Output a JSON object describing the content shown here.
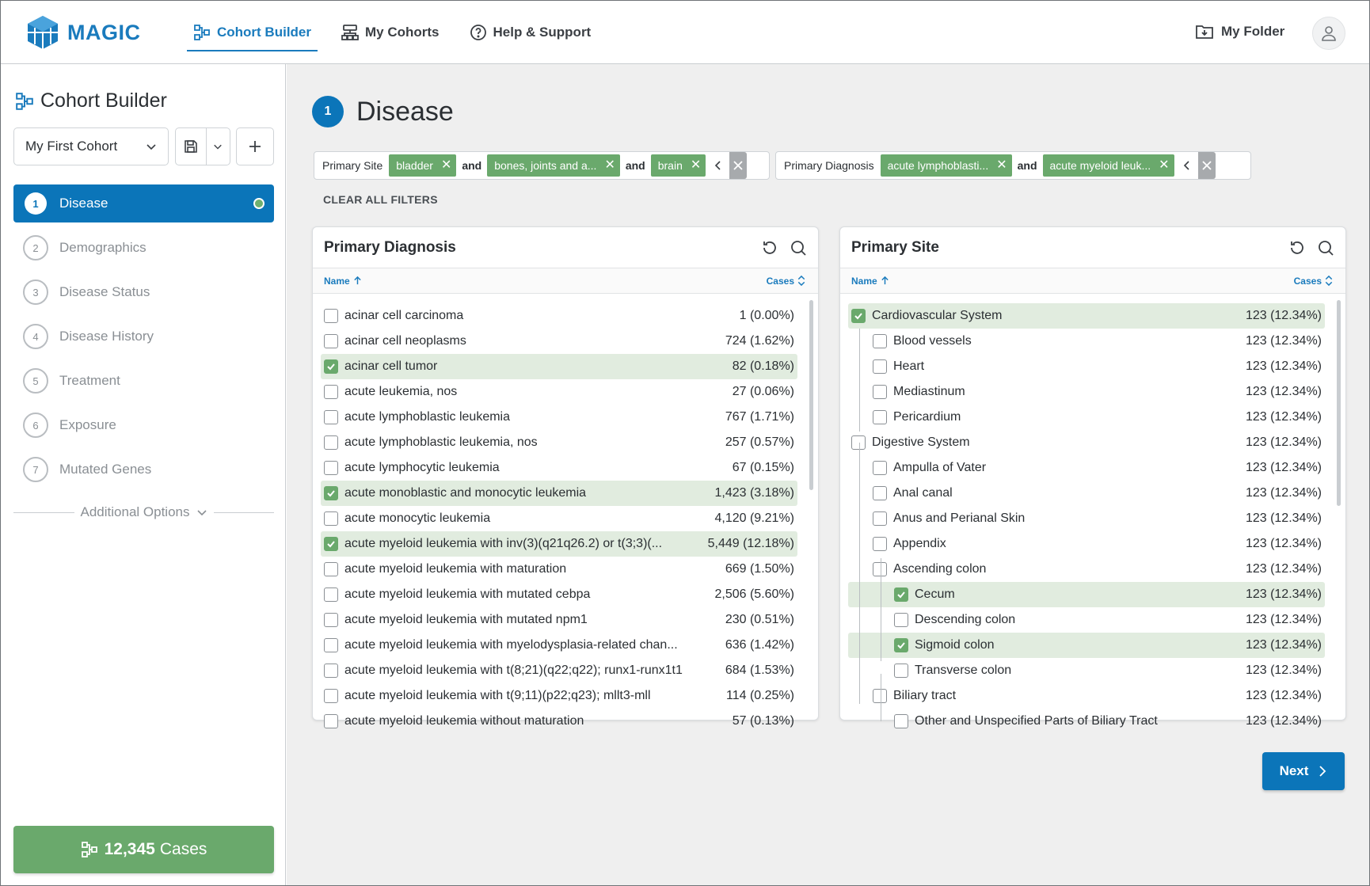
{
  "brand": {
    "name": "MAGIC",
    "color": "#1a7bbd"
  },
  "nav": {
    "items": [
      {
        "label": "Cohort Builder",
        "icon": "cohort-builder-icon",
        "active": true
      },
      {
        "label": "My Cohorts",
        "icon": "my-cohorts-icon",
        "active": false
      },
      {
        "label": "Help & Support",
        "icon": "help-icon",
        "active": false
      }
    ],
    "my_folder": "My Folder"
  },
  "sidebar": {
    "title": "Cohort Builder",
    "cohort_name": "My First Cohort",
    "steps": [
      {
        "num": "1",
        "label": "Disease",
        "active": true
      },
      {
        "num": "2",
        "label": "Demographics"
      },
      {
        "num": "3",
        "label": "Disease Status"
      },
      {
        "num": "4",
        "label": "Disease History"
      },
      {
        "num": "5",
        "label": "Treatment"
      },
      {
        "num": "6",
        "label": "Exposure"
      },
      {
        "num": "7",
        "label": "Mutated Genes"
      }
    ],
    "additional_options": "Additional Options",
    "cases_count": "12,345",
    "cases_label": "Cases"
  },
  "main": {
    "section_num": "1",
    "section_title": "Disease",
    "filters": {
      "primary_site": {
        "label": "Primary Site",
        "chips": [
          "bladder",
          "bones, joints and a...",
          "brain"
        ],
        "conj": "and"
      },
      "primary_diagnosis": {
        "label": "Primary Diagnosis",
        "chips": [
          "acute lymphoblasti...",
          "acute myeloid leuk..."
        ],
        "conj": "and"
      }
    },
    "clear_all": "CLEAR ALL FILTERS",
    "next": "Next"
  },
  "diagnosis_panel": {
    "title": "Primary Diagnosis",
    "col_name": "Name",
    "col_cases": "Cases",
    "rows": [
      {
        "name": "acinar cell carcinoma",
        "cases": "1 (0.00%)",
        "checked": false
      },
      {
        "name": "acinar cell neoplasms",
        "cases": "724 (1.62%)",
        "checked": false
      },
      {
        "name": "acinar cell tumor",
        "cases": "82 (0.18%)",
        "checked": true
      },
      {
        "name": "acute leukemia, nos",
        "cases": "27 (0.06%)",
        "checked": false
      },
      {
        "name": "acute lymphoblastic leukemia",
        "cases": "767 (1.71%)",
        "checked": false
      },
      {
        "name": "acute lymphoblastic leukemia, nos",
        "cases": "257 (0.57%)",
        "checked": false
      },
      {
        "name": "acute lymphocytic leukemia",
        "cases": "67 (0.15%)",
        "checked": false
      },
      {
        "name": "acute monoblastic and monocytic leukemia",
        "cases": "1,423 (3.18%)",
        "checked": true
      },
      {
        "name": "acute monocytic leukemia",
        "cases": "4,120 (9.21%)",
        "checked": false
      },
      {
        "name": "acute myeloid leukemia with inv(3)(q21q26.2) or t(3;3)(...",
        "cases": "5,449 (12.18%)",
        "checked": true
      },
      {
        "name": "acute myeloid leukemia with maturation",
        "cases": "669 (1.50%)",
        "checked": false
      },
      {
        "name": "acute myeloid leukemia with mutated cebpa",
        "cases": "2,506 (5.60%)",
        "checked": false
      },
      {
        "name": "acute myeloid leukemia with mutated npm1",
        "cases": "230 (0.51%)",
        "checked": false
      },
      {
        "name": "acute myeloid leukemia with myelodysplasia-related chan...",
        "cases": "636 (1.42%)",
        "checked": false
      },
      {
        "name": "acute myeloid leukemia with t(8;21)(q22;q22); runx1-runx1t1",
        "cases": "684 (1.53%)",
        "checked": false
      },
      {
        "name": "acute myeloid leukemia with t(9;11)(p22;q23); mllt3-mll",
        "cases": "114 (0.25%)",
        "checked": false
      },
      {
        "name": "acute myeloid leukemia without maturation",
        "cases": "57 (0.13%)",
        "checked": false
      }
    ]
  },
  "site_panel": {
    "title": "Primary Site",
    "col_name": "Name",
    "col_cases": "Cases",
    "rows": [
      {
        "name": "Cardiovascular System",
        "cases": "123 (12.34%)",
        "checked": true,
        "level": 0
      },
      {
        "name": "Blood vessels",
        "cases": "123 (12.34%)",
        "checked": false,
        "level": 1
      },
      {
        "name": "Heart",
        "cases": "123 (12.34%)",
        "checked": false,
        "level": 1
      },
      {
        "name": "Mediastinum",
        "cases": "123 (12.34%)",
        "checked": false,
        "level": 1
      },
      {
        "name": "Pericardium",
        "cases": "123 (12.34%)",
        "checked": false,
        "level": 1
      },
      {
        "name": "Digestive System",
        "cases": "123 (12.34%)",
        "checked": false,
        "level": 0
      },
      {
        "name": "Ampulla of Vater",
        "cases": "123 (12.34%)",
        "checked": false,
        "level": 1
      },
      {
        "name": "Anal canal",
        "cases": "123 (12.34%)",
        "checked": false,
        "level": 1
      },
      {
        "name": "Anus and Perianal Skin",
        "cases": "123 (12.34%)",
        "checked": false,
        "level": 1
      },
      {
        "name": "Appendix",
        "cases": "123 (12.34%)",
        "checked": false,
        "level": 1
      },
      {
        "name": "Ascending colon",
        "cases": "123 (12.34%)",
        "checked": false,
        "level": 1
      },
      {
        "name": "Cecum",
        "cases": "123 (12.34%)",
        "checked": true,
        "level": 2
      },
      {
        "name": "Descending colon",
        "cases": "123 (12.34%)",
        "checked": false,
        "level": 2
      },
      {
        "name": "Sigmoid colon",
        "cases": "123 (12.34%)",
        "checked": true,
        "level": 2
      },
      {
        "name": "Transverse colon",
        "cases": "123 (12.34%)",
        "checked": false,
        "level": 2
      },
      {
        "name": "Biliary tract",
        "cases": "123 (12.34%)",
        "checked": false,
        "level": 1
      },
      {
        "name": "Other and Unspecified Parts of Biliary Tract",
        "cases": "123 (12.34%)",
        "checked": false,
        "level": 2
      }
    ]
  }
}
